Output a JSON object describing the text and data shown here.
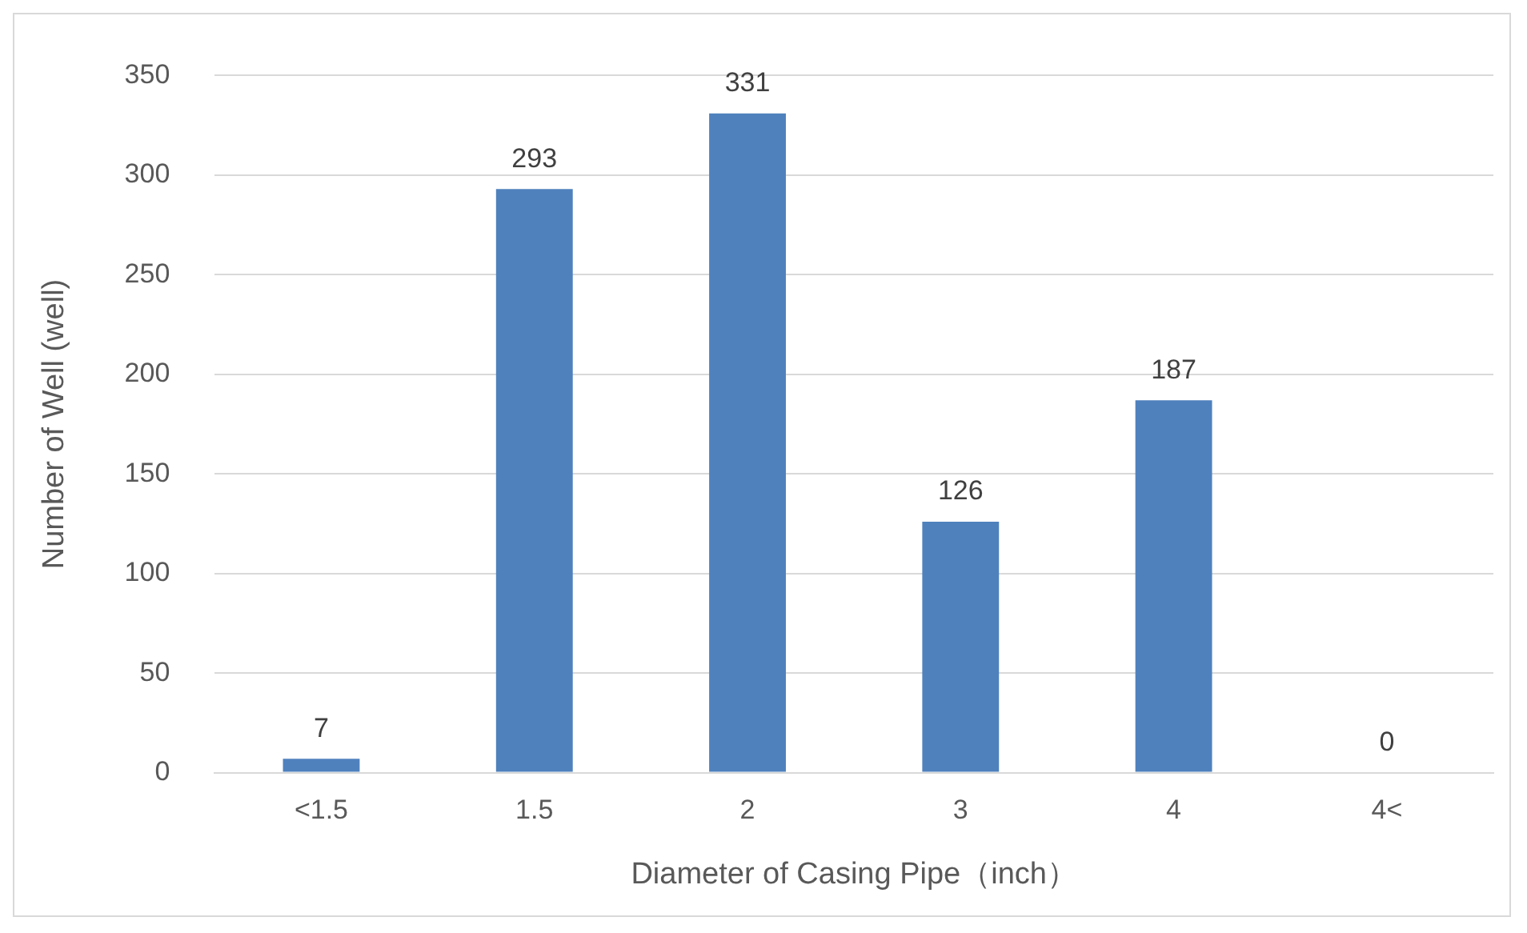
{
  "chart_data": {
    "type": "bar",
    "xlabel": "Diameter of Casing Pipe（inch）",
    "ylabel": "Number of Well (well)",
    "categories": [
      "<1.5",
      "1.5",
      "2",
      "3",
      "4",
      "4<"
    ],
    "values": [
      7,
      293,
      331,
      126,
      187,
      0
    ],
    "color": "#4f81bd",
    "ylim": [
      0,
      350
    ],
    "yticks": [
      0,
      50,
      100,
      150,
      200,
      250,
      300,
      350
    ],
    "grid": "y",
    "data_labels": true,
    "legend": false
  }
}
